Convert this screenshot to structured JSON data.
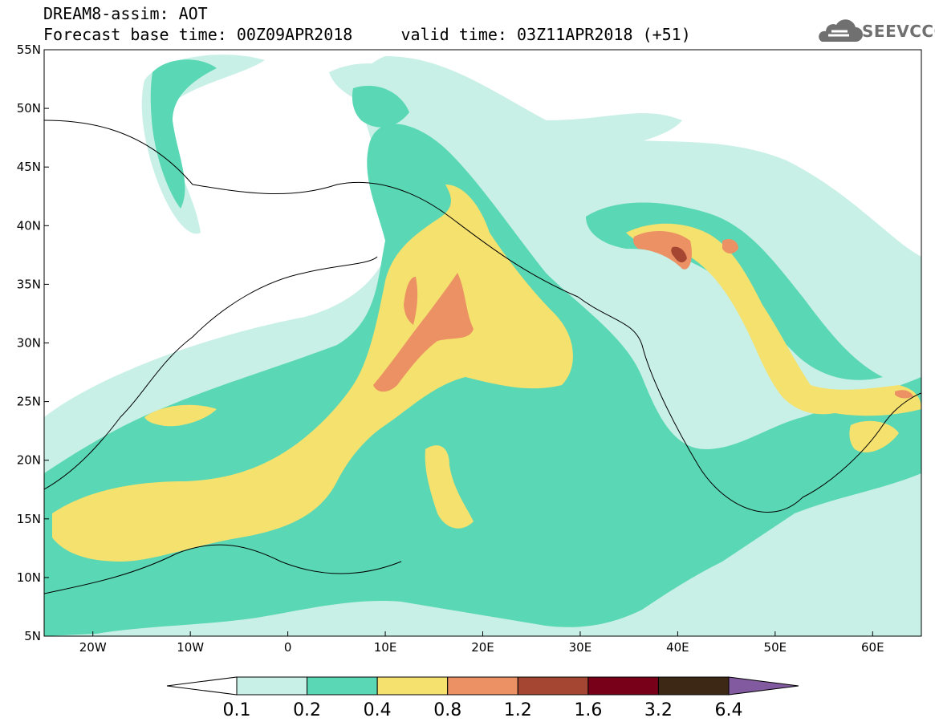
{
  "header": {
    "title_line1": "DREAM8-assim: AOT",
    "title_line2": "Forecast base time: 00Z09APR2018     valid time: 03Z11APR2018 (+51)",
    "logo_text": "SEEVCCC"
  },
  "map": {
    "lon_range": [
      -25,
      65
    ],
    "lat_range": [
      5,
      55
    ],
    "x_ticks": [
      {
        "lon": -20,
        "label": "20W"
      },
      {
        "lon": -10,
        "label": "10W"
      },
      {
        "lon": 0,
        "label": "0"
      },
      {
        "lon": 10,
        "label": "10E"
      },
      {
        "lon": 20,
        "label": "20E"
      },
      {
        "lon": 30,
        "label": "30E"
      },
      {
        "lon": 40,
        "label": "40E"
      },
      {
        "lon": 50,
        "label": "50E"
      },
      {
        "lon": 60,
        "label": "60E"
      }
    ],
    "y_ticks": [
      {
        "lat": 55,
        "label": "55N"
      },
      {
        "lat": 50,
        "label": "50N"
      },
      {
        "lat": 45,
        "label": "45N"
      },
      {
        "lat": 40,
        "label": "40N"
      },
      {
        "lat": 35,
        "label": "35N"
      },
      {
        "lat": 30,
        "label": "30N"
      },
      {
        "lat": 25,
        "label": "25N"
      },
      {
        "lat": 20,
        "label": "20N"
      },
      {
        "lat": 15,
        "label": "15N"
      },
      {
        "lat": 10,
        "label": "10N"
      },
      {
        "lat": 5,
        "label": "5N"
      }
    ]
  },
  "colorbar": {
    "colors": [
      "#ffffff",
      "#c8f0e6",
      "#5ad7b4",
      "#f5e16e",
      "#eb9164",
      "#a54632",
      "#780019",
      "#3c2814",
      "#825aa0"
    ],
    "labels": [
      "0.1",
      "0.2",
      "0.4",
      "0.8",
      "1.2",
      "1.6",
      "3.2",
      "6.4"
    ]
  }
}
